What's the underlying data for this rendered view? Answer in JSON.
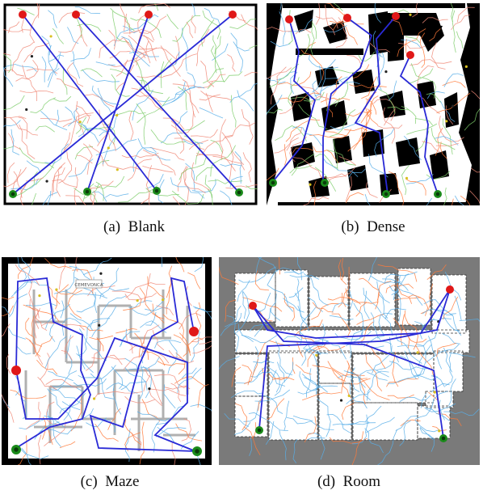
{
  "figure": {
    "panels": [
      {
        "id": "a",
        "label": "(a)",
        "name": "Blank"
      },
      {
        "id": "b",
        "label": "(b)",
        "name": "Dense"
      },
      {
        "id": "c",
        "label": "(c)",
        "name": "Maze"
      },
      {
        "id": "d",
        "label": "(d)",
        "name": "Room"
      }
    ],
    "maze_sign_text": "CEMEVONCA"
  },
  "colors": {
    "path": "#2a2ad6",
    "start": "#e01818",
    "goal": "#1a8a1a",
    "tree_red": "#f08a78",
    "tree_blue": "#58aee8",
    "tree_green": "#7ccc6a",
    "tree_orange": "#ff7a3a",
    "obstacle": "#000000",
    "room_bg": "#7a7a7a",
    "sample_dot": "#d8c020"
  }
}
